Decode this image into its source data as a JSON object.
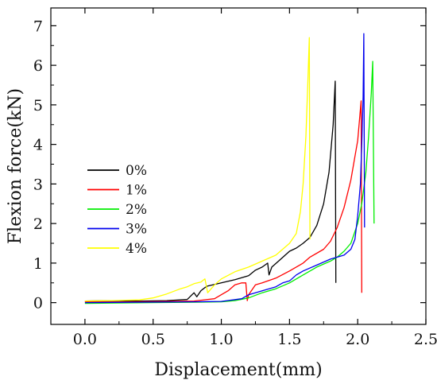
{
  "chart_data": {
    "type": "line",
    "xlabel": "Displacement(mm)",
    "ylabel": "Flexion force(kN)",
    "xlim": [
      -0.25,
      2.5
    ],
    "ylim": [
      -0.55,
      7.45
    ],
    "xticks": [
      0.0,
      0.5,
      1.0,
      1.5,
      2.0,
      2.5
    ],
    "xtick_labels": [
      "0.0",
      "0.5",
      "1.0",
      "1.5",
      "2.0",
      "2.5"
    ],
    "yticks": [
      0,
      1,
      2,
      3,
      4,
      5,
      6,
      7
    ],
    "ytick_labels": [
      "0",
      "1",
      "2",
      "3",
      "4",
      "5",
      "6",
      "7"
    ],
    "grid": false,
    "legend_position": "middle-left",
    "series": [
      {
        "name": "0%",
        "color": "#000000",
        "points": [
          [
            0.0,
            0.04
          ],
          [
            0.2,
            0.05
          ],
          [
            0.4,
            0.04
          ],
          [
            0.6,
            0.05
          ],
          [
            0.75,
            0.08
          ],
          [
            0.8,
            0.25
          ],
          [
            0.82,
            0.15
          ],
          [
            0.85,
            0.3
          ],
          [
            0.88,
            0.38
          ],
          [
            0.9,
            0.42
          ],
          [
            1.0,
            0.5
          ],
          [
            1.1,
            0.58
          ],
          [
            1.2,
            0.68
          ],
          [
            1.25,
            0.82
          ],
          [
            1.3,
            0.9
          ],
          [
            1.34,
            1.0
          ],
          [
            1.35,
            0.7
          ],
          [
            1.37,
            0.9
          ],
          [
            1.42,
            1.05
          ],
          [
            1.5,
            1.3
          ],
          [
            1.55,
            1.38
          ],
          [
            1.6,
            1.5
          ],
          [
            1.65,
            1.65
          ],
          [
            1.7,
            1.95
          ],
          [
            1.75,
            2.5
          ],
          [
            1.79,
            3.3
          ],
          [
            1.82,
            4.5
          ],
          [
            1.835,
            5.6
          ],
          [
            1.84,
            0.5
          ]
        ]
      },
      {
        "name": "1%",
        "color": "#ff0000",
        "points": [
          [
            0.0,
            0.02
          ],
          [
            0.3,
            0.02
          ],
          [
            0.6,
            0.03
          ],
          [
            0.8,
            0.04
          ],
          [
            0.95,
            0.1
          ],
          [
            1.0,
            0.2
          ],
          [
            1.05,
            0.3
          ],
          [
            1.1,
            0.45
          ],
          [
            1.15,
            0.5
          ],
          [
            1.18,
            0.5
          ],
          [
            1.19,
            0.05
          ],
          [
            1.2,
            0.2
          ],
          [
            1.25,
            0.45
          ],
          [
            1.3,
            0.5
          ],
          [
            1.4,
            0.62
          ],
          [
            1.5,
            0.8
          ],
          [
            1.6,
            1.0
          ],
          [
            1.65,
            1.15
          ],
          [
            1.75,
            1.35
          ],
          [
            1.8,
            1.55
          ],
          [
            1.85,
            1.9
          ],
          [
            1.9,
            2.4
          ],
          [
            1.95,
            3.1
          ],
          [
            2.0,
            4.1
          ],
          [
            2.025,
            5.1
          ],
          [
            2.03,
            0.25
          ]
        ]
      },
      {
        "name": "2%",
        "color": "#00ee00",
        "points": [
          [
            0.0,
            -0.02
          ],
          [
            0.5,
            0.0
          ],
          [
            0.8,
            0.01
          ],
          [
            1.0,
            0.02
          ],
          [
            1.1,
            0.05
          ],
          [
            1.2,
            0.12
          ],
          [
            1.3,
            0.25
          ],
          [
            1.4,
            0.35
          ],
          [
            1.5,
            0.5
          ],
          [
            1.6,
            0.7
          ],
          [
            1.7,
            0.9
          ],
          [
            1.8,
            1.05
          ],
          [
            1.85,
            1.15
          ],
          [
            1.9,
            1.3
          ],
          [
            1.95,
            1.5
          ],
          [
            2.0,
            2.0
          ],
          [
            2.03,
            2.5
          ],
          [
            2.06,
            3.3
          ],
          [
            2.08,
            4.2
          ],
          [
            2.1,
            5.3
          ],
          [
            2.11,
            6.1
          ],
          [
            2.12,
            2.0
          ]
        ]
      },
      {
        "name": "3%",
        "color": "#0000ee",
        "points": [
          [
            0.0,
            0.0
          ],
          [
            0.4,
            0.01
          ],
          [
            0.8,
            0.02
          ],
          [
            1.0,
            0.03
          ],
          [
            1.15,
            0.1
          ],
          [
            1.2,
            0.2
          ],
          [
            1.3,
            0.3
          ],
          [
            1.4,
            0.4
          ],
          [
            1.45,
            0.5
          ],
          [
            1.5,
            0.55
          ],
          [
            1.55,
            0.7
          ],
          [
            1.6,
            0.8
          ],
          [
            1.7,
            0.95
          ],
          [
            1.8,
            1.1
          ],
          [
            1.9,
            1.2
          ],
          [
            1.95,
            1.35
          ],
          [
            1.98,
            1.6
          ],
          [
            2.0,
            2.2
          ],
          [
            2.02,
            3.0
          ],
          [
            2.03,
            4.0
          ],
          [
            2.04,
            5.2
          ],
          [
            2.045,
            6.8
          ],
          [
            2.05,
            1.9
          ]
        ]
      },
      {
        "name": "4%",
        "color": "#ffff00",
        "points": [
          [
            0.0,
            0.04
          ],
          [
            0.2,
            0.05
          ],
          [
            0.4,
            0.07
          ],
          [
            0.5,
            0.12
          ],
          [
            0.6,
            0.22
          ],
          [
            0.7,
            0.35
          ],
          [
            0.75,
            0.4
          ],
          [
            0.8,
            0.48
          ],
          [
            0.85,
            0.52
          ],
          [
            0.88,
            0.6
          ],
          [
            0.9,
            0.25
          ],
          [
            0.95,
            0.45
          ],
          [
            1.0,
            0.6
          ],
          [
            1.1,
            0.78
          ],
          [
            1.2,
            0.9
          ],
          [
            1.3,
            1.05
          ],
          [
            1.4,
            1.2
          ],
          [
            1.5,
            1.5
          ],
          [
            1.55,
            1.75
          ],
          [
            1.58,
            2.3
          ],
          [
            1.6,
            3.0
          ],
          [
            1.62,
            4.2
          ],
          [
            1.635,
            5.6
          ],
          [
            1.645,
            6.7
          ],
          [
            1.65,
            1.6
          ]
        ]
      }
    ]
  }
}
